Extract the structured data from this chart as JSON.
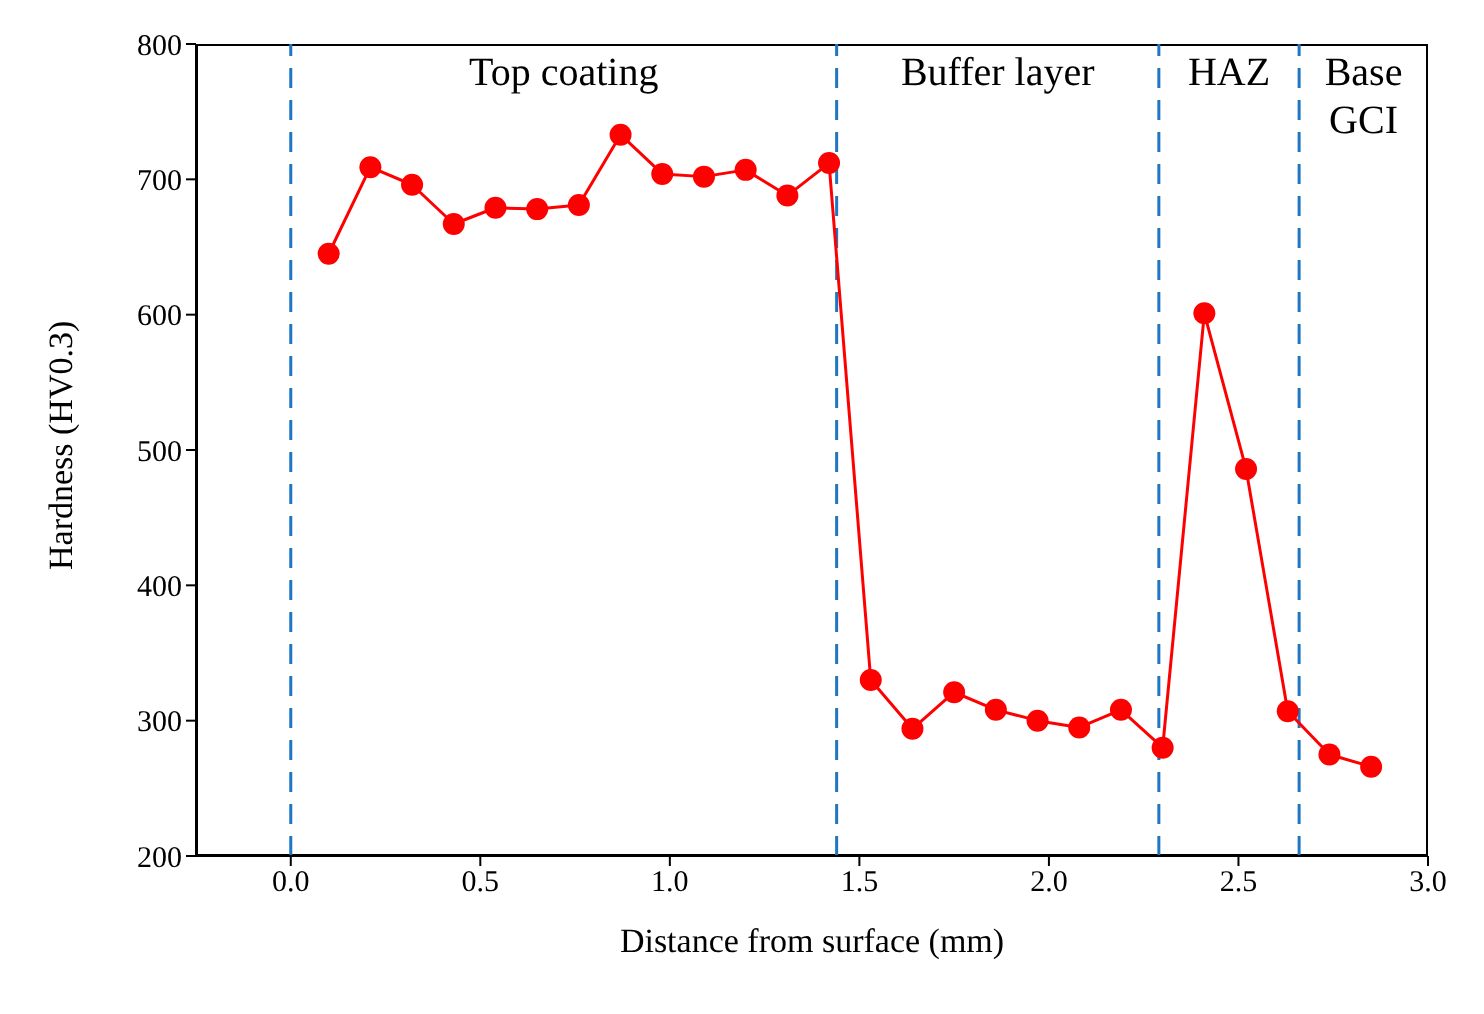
{
  "chart_data": {
    "type": "line",
    "xlabel": "Distance from surface (mm)",
    "ylabel": "Hardness (HV0.3)",
    "x": [
      0.1,
      0.21,
      0.32,
      0.43,
      0.54,
      0.65,
      0.76,
      0.87,
      0.98,
      1.09,
      1.2,
      1.31,
      1.42,
      1.53,
      1.64,
      1.75,
      1.86,
      1.97,
      2.08,
      2.19,
      2.3,
      2.41,
      2.52,
      2.63,
      2.74,
      2.85
    ],
    "series": [
      {
        "color": "#ff0000",
        "values": [
          645,
          709,
          696,
          667,
          679,
          678,
          681,
          733,
          704,
          702,
          707,
          688,
          712,
          330,
          294,
          321,
          308,
          300,
          295,
          308,
          280,
          601,
          486,
          307,
          275,
          266
        ]
      }
    ],
    "xlim": [
      -0.25,
      3.0
    ],
    "xticks": [
      {
        "value": 0,
        "label": "0.0"
      },
      0.5,
      {
        "value": 1,
        "label": "1.0"
      },
      1.5,
      {
        "value": 2,
        "label": "2.0"
      },
      2.5,
      {
        "value": 3,
        "label": "3.0"
      }
    ],
    "ylim": [
      200,
      800
    ],
    "yticks": [
      200,
      300,
      400,
      500,
      600,
      700,
      800
    ],
    "ref_lines": [
      {
        "axis": "x",
        "value": 0.0,
        "color": "#1f77c4",
        "line_style": "dashed"
      },
      {
        "axis": "x",
        "value": 1.44,
        "color": "#1f77c4",
        "line_style": "dashed"
      },
      {
        "axis": "x",
        "value": 2.29,
        "color": "#1f77c4",
        "line_style": "dashed"
      },
      {
        "axis": "x",
        "value": 2.66,
        "color": "#1f77c4",
        "line_style": "dashed"
      }
    ],
    "annotations": [
      "Top coating",
      "Buffer layer",
      "HAZ",
      "Base\nGCI"
    ],
    "marker": "circle",
    "line_style": "solid",
    "grid": false,
    "legend": false
  }
}
